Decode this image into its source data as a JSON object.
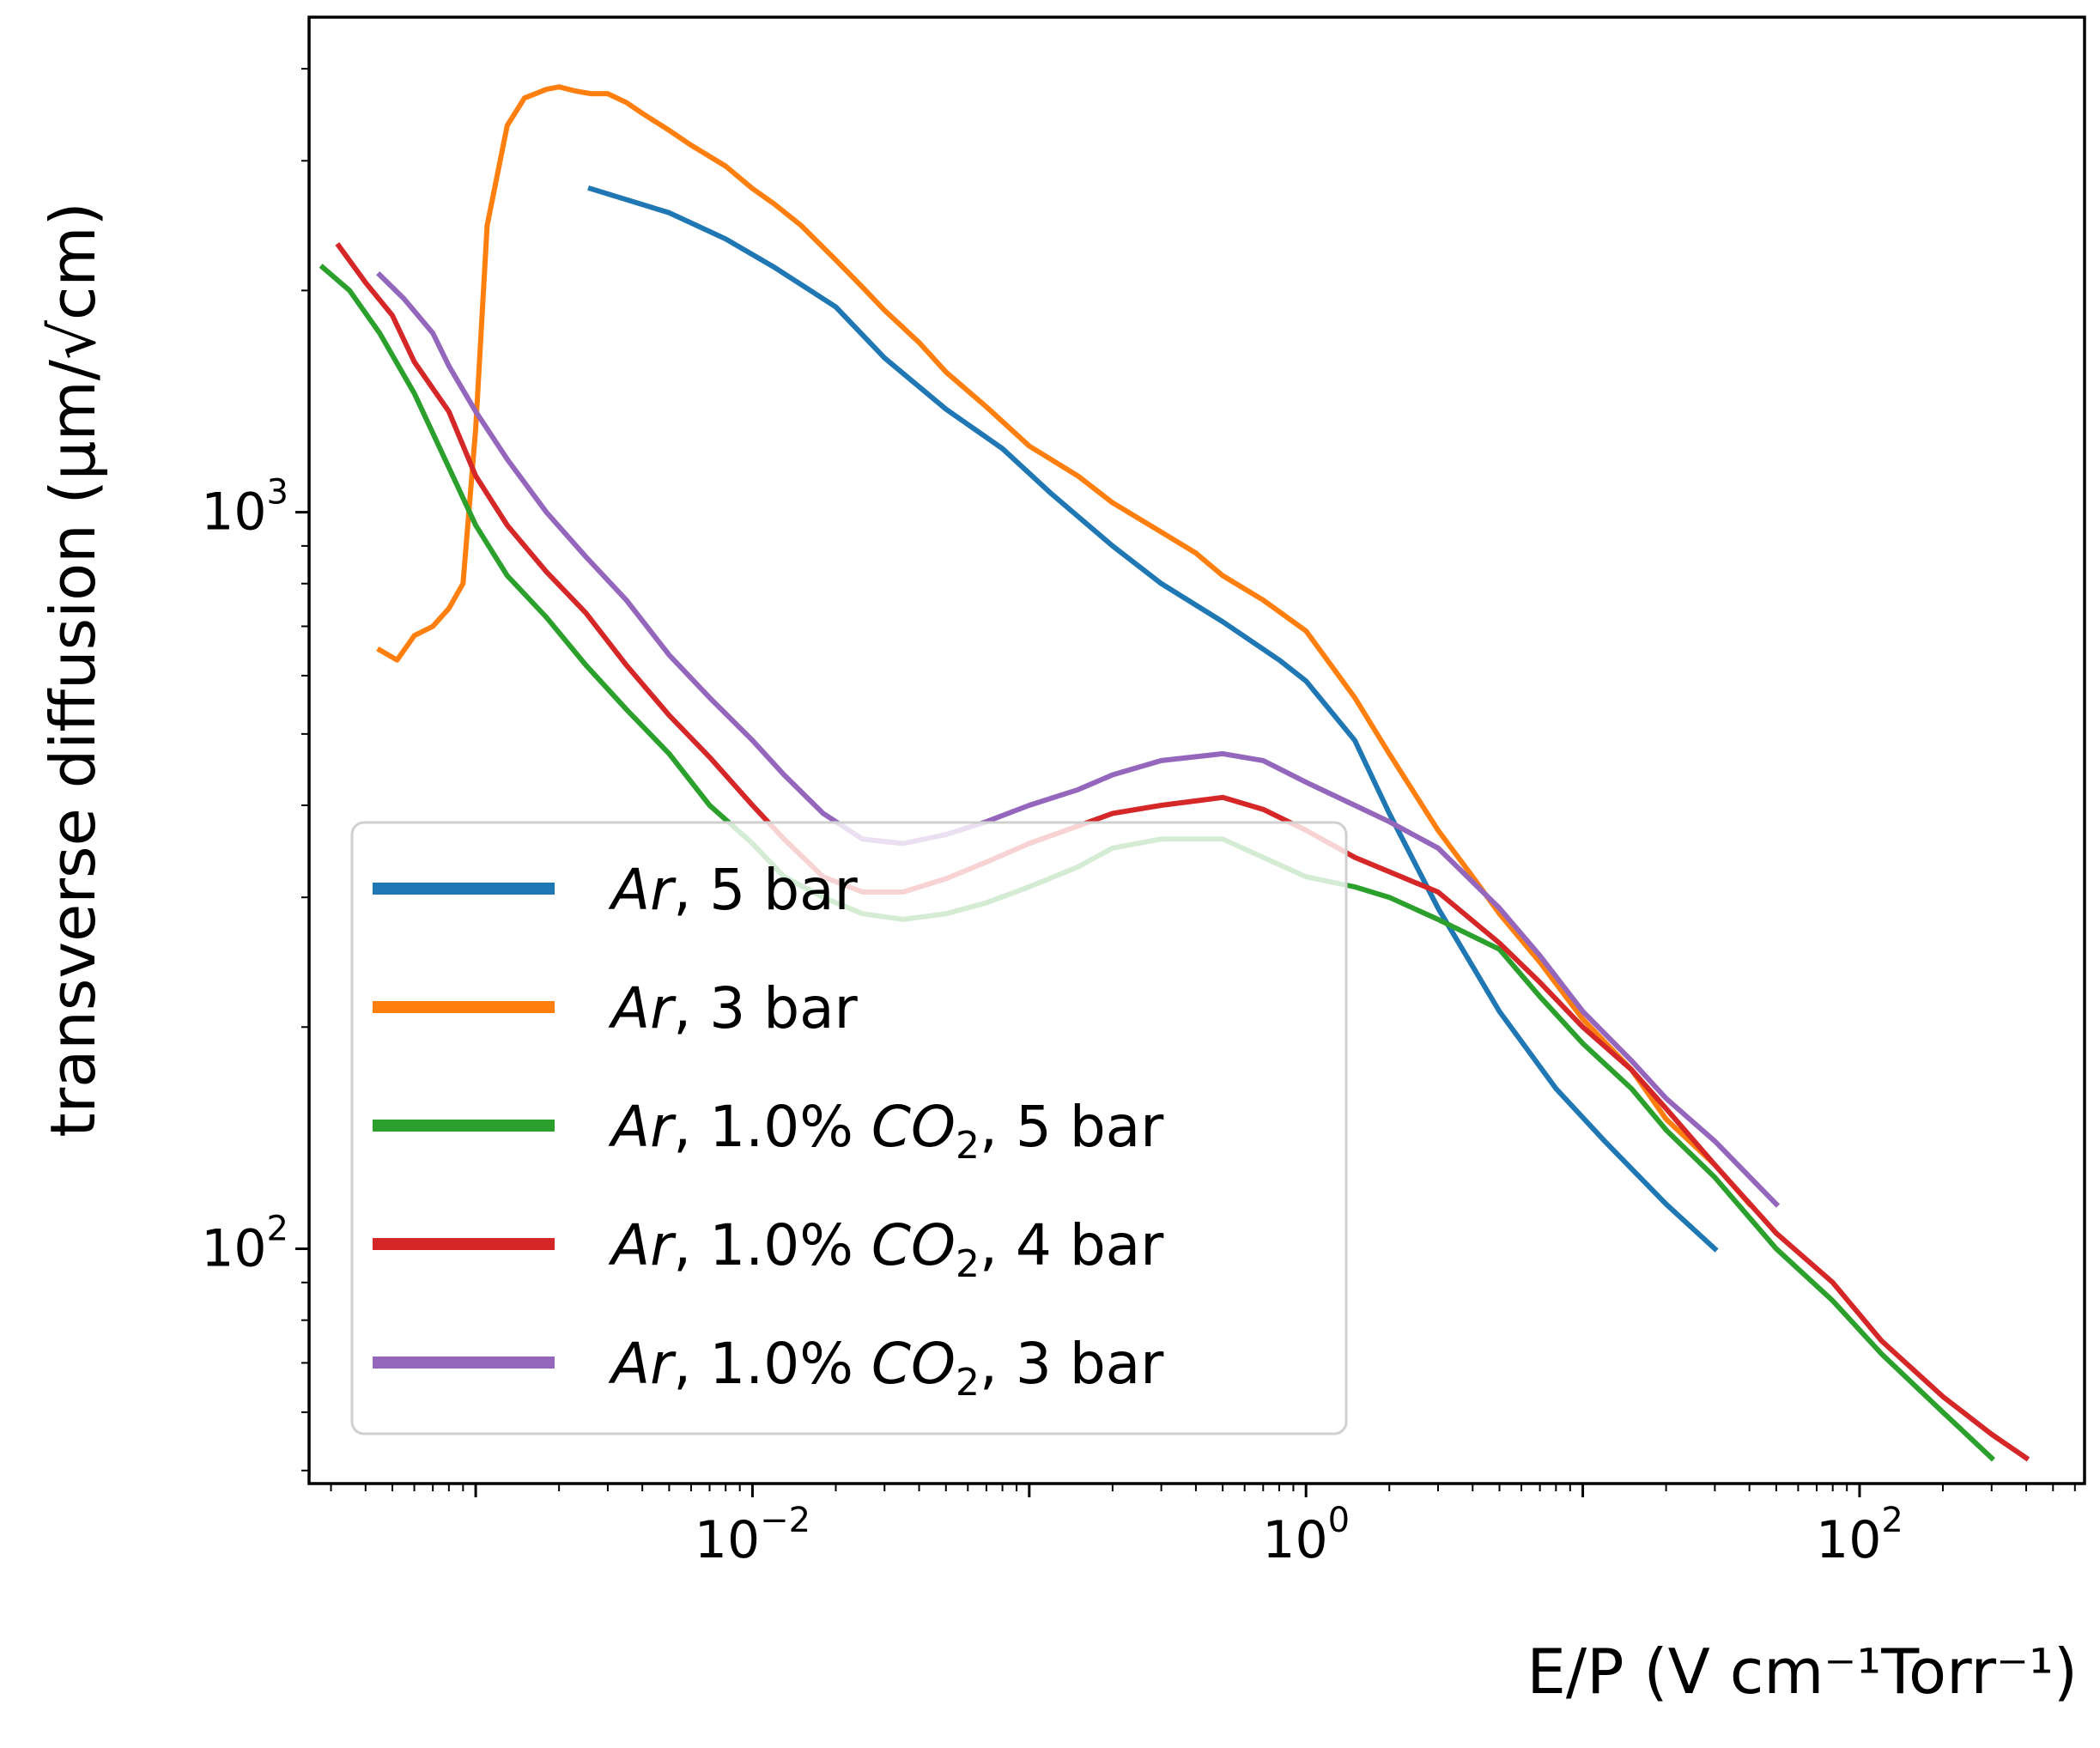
{
  "chart_data": {
    "type": "line",
    "title": "",
    "xlabel": "E/P (V cm⁻¹Torr⁻¹)",
    "ylabel": "transverse diffusion (μm/√cm)",
    "xscale": "log",
    "yscale": "log",
    "xlim": [
      0.00025,
      650
    ],
    "ylim": [
      48,
      4700
    ],
    "xticks": [
      {
        "value": 0.01,
        "label": "10",
        "exp": "−2"
      },
      {
        "value": 1,
        "label": "10",
        "exp": "0"
      },
      {
        "value": 100,
        "label": "10",
        "exp": "2"
      }
    ],
    "yticks": [
      {
        "value": 100,
        "label": "10",
        "exp": "2"
      },
      {
        "value": 1000,
        "label": "10",
        "exp": "3"
      }
    ],
    "grid": false,
    "legend_position": "lower-left",
    "series": [
      {
        "name": "Ar, 5 bar",
        "legend": {
          "italic": "Ar",
          "rest": ", 5 bar"
        },
        "color": "#1f77b4",
        "x": [
          0.0026,
          0.005,
          0.008,
          0.012,
          0.02,
          0.03,
          0.05,
          0.08,
          0.12,
          0.2,
          0.3,
          0.5,
          0.8,
          1.0,
          1.5,
          2.0,
          3.0,
          5.0,
          8.0,
          12.0,
          20.0,
          30.0
        ],
        "y": [
          2750,
          2550,
          2350,
          2150,
          1900,
          1620,
          1380,
          1220,
          1060,
          900,
          800,
          710,
          630,
          590,
          490,
          390,
          290,
          210,
          165,
          140,
          115,
          100
        ]
      },
      {
        "name": "Ar, 3 bar",
        "legend": {
          "italic": "Ar",
          "rest": ", 3 bar"
        },
        "color": "#ff7f0e",
        "x": [
          0.00045,
          0.00052,
          0.0006,
          0.0007,
          0.0008,
          0.0009,
          0.001,
          0.0011,
          0.0013,
          0.0015,
          0.0018,
          0.002,
          0.0023,
          0.0026,
          0.003,
          0.0035,
          0.004,
          0.005,
          0.006,
          0.008,
          0.01,
          0.012,
          0.015,
          0.02,
          0.025,
          0.03,
          0.04,
          0.05,
          0.07,
          0.1,
          0.15,
          0.2,
          0.3,
          0.4,
          0.5,
          0.7,
          1.0,
          1.5,
          2.0,
          3.0,
          4.0,
          5.0,
          7.0,
          10.0,
          15.0,
          20.0,
          30.0,
          40.0
        ],
        "y": [
          650,
          630,
          680,
          700,
          740,
          800,
          1300,
          2450,
          3350,
          3650,
          3750,
          3780,
          3730,
          3700,
          3700,
          3600,
          3480,
          3300,
          3150,
          2950,
          2750,
          2620,
          2450,
          2200,
          2020,
          1880,
          1700,
          1550,
          1390,
          1230,
          1120,
          1030,
          940,
          880,
          820,
          760,
          690,
          560,
          470,
          370,
          320,
          285,
          245,
          205,
          175,
          150,
          130,
          115
        ]
      },
      {
        "name": "Ar, 1.0% CO2, 5 bar",
        "legend": {
          "italic": "Ar",
          "rest": ", 1.0% ",
          "italic2": "CO",
          "sub": "2",
          "rest2": ", 5 bar"
        },
        "color": "#2ca02c",
        "x": [
          0.00028,
          0.00035,
          0.00045,
          0.0006,
          0.0008,
          0.001,
          0.0013,
          0.0018,
          0.0025,
          0.0035,
          0.005,
          0.007,
          0.01,
          0.013,
          0.018,
          0.025,
          0.035,
          0.05,
          0.07,
          0.1,
          0.15,
          0.2,
          0.3,
          0.5,
          0.7,
          1.0,
          1.5,
          2.0,
          3.0,
          5.0,
          7.0,
          10.0,
          15.0,
          20.0,
          30.0,
          50.0,
          80.0,
          120.0,
          200.0,
          300.0
        ],
        "y": [
          2150,
          2000,
          1750,
          1450,
          1150,
          960,
          820,
          720,
          620,
          540,
          470,
          400,
          355,
          320,
          300,
          285,
          280,
          285,
          295,
          310,
          330,
          350,
          360,
          360,
          340,
          320,
          310,
          300,
          280,
          255,
          220,
          190,
          165,
          145,
          125,
          100,
          85,
          72,
          60,
          52
        ]
      },
      {
        "name": "Ar, 1.0% CO2, 4 bar",
        "legend": {
          "italic": "Ar",
          "rest": ", 1.0% ",
          "italic2": "CO",
          "sub": "2",
          "rest2": ", 4 bar"
        },
        "color": "#d62728",
        "x": [
          0.00032,
          0.0004,
          0.0005,
          0.0006,
          0.0008,
          0.001,
          0.0013,
          0.0018,
          0.0025,
          0.0035,
          0.005,
          0.007,
          0.01,
          0.013,
          0.018,
          0.025,
          0.035,
          0.05,
          0.07,
          0.1,
          0.15,
          0.2,
          0.3,
          0.5,
          0.7,
          1.0,
          1.5,
          2.0,
          3.0,
          5.0,
          7.0,
          10.0,
          15.0,
          20.0,
          30.0,
          50.0,
          80.0,
          120.0,
          200.0,
          300.0,
          400.0
        ],
        "y": [
          2300,
          2050,
          1850,
          1600,
          1370,
          1120,
          960,
          830,
          730,
          620,
          530,
          465,
          400,
          360,
          320,
          305,
          305,
          318,
          335,
          355,
          375,
          390,
          400,
          410,
          395,
          370,
          340,
          325,
          305,
          260,
          230,
          200,
          175,
          155,
          130,
          105,
          90,
          75,
          63,
          56,
          52
        ]
      },
      {
        "name": "Ar, 1.0% CO2, 3 bar",
        "legend": {
          "italic": "Ar",
          "rest": ", 1.0% ",
          "italic2": "CO",
          "sub": "2",
          "rest2": ", 3 bar"
        },
        "color": "#9467bd",
        "x": [
          0.00045,
          0.00055,
          0.0007,
          0.0008,
          0.001,
          0.0013,
          0.0018,
          0.0025,
          0.0035,
          0.005,
          0.007,
          0.01,
          0.013,
          0.018,
          0.025,
          0.035,
          0.05,
          0.07,
          0.1,
          0.15,
          0.2,
          0.3,
          0.5,
          0.7,
          1.0,
          1.5,
          2.0,
          3.0,
          5.0,
          7.0,
          10.0,
          15.0,
          20.0,
          30.0,
          50.0
        ],
        "y": [
          2100,
          1950,
          1750,
          1580,
          1370,
          1180,
          1000,
          870,
          760,
          640,
          560,
          490,
          440,
          390,
          360,
          355,
          365,
          380,
          400,
          420,
          440,
          460,
          470,
          460,
          430,
          400,
          380,
          350,
          290,
          250,
          210,
          180,
          160,
          140,
          115
        ]
      }
    ]
  }
}
